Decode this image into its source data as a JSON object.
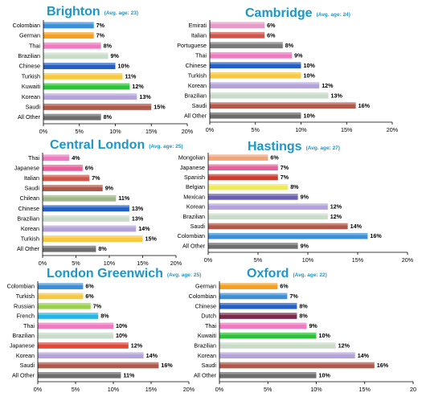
{
  "chart_data": [
    {
      "type": "bar",
      "title": "Brighton",
      "subtitle": "(Avg. age: 23)",
      "unit": "%",
      "xlim": [
        0,
        20
      ],
      "ticks": [
        "0%",
        "5%",
        "10%",
        "15%",
        "20%"
      ],
      "grid": false,
      "categories": [
        "Colombian",
        "German",
        "Thai",
        "Brazilian",
        "Chinese",
        "Turkish",
        "Kuwaiti",
        "Korean",
        "Saudi",
        "All Other"
      ],
      "values": [
        7,
        7,
        8,
        9,
        10,
        11,
        12,
        13,
        15,
        8
      ],
      "value_labels": [
        "7%",
        "7%",
        "8%",
        "9%",
        "10%",
        "11%",
        "12%",
        "13%",
        "15%",
        "8%"
      ],
      "colors": [
        "#3b8fd6",
        "#f6a01e",
        "#f07ac0",
        "#c9dcc9",
        "#2460c4",
        "#f7c840",
        "#2ec23a",
        "#b3a2dc",
        "#b0584a",
        "#6d6d6d"
      ]
    },
    {
      "type": "bar",
      "title": "Cambridge",
      "subtitle": "(Avg. age: 24)",
      "unit": "%",
      "xlim": [
        0,
        20
      ],
      "ticks": [
        "0%",
        "5%",
        "10%",
        "15%",
        "20%"
      ],
      "grid": false,
      "categories": [
        "Emirati",
        "Italian",
        "Portuguese",
        "Thai",
        "Chinese",
        "Turkish",
        "Korean",
        "Brazilian",
        "Saudi",
        "All Other"
      ],
      "values": [
        6,
        6,
        8,
        9,
        10,
        10,
        12,
        13,
        16,
        10
      ],
      "value_labels": [
        "6%",
        "6%",
        "8%",
        "9%",
        "10%",
        "10%",
        "12%",
        "13%",
        "16%",
        "10%"
      ],
      "colors": [
        "#e79ac8",
        "#d0564a",
        "#7a7a7a",
        "#f07ac0",
        "#2460c4",
        "#f7c840",
        "#b3a2dc",
        "#c9dcc9",
        "#b0584a",
        "#6d6d6d"
      ]
    },
    {
      "type": "bar",
      "title": "Central London",
      "subtitle": "(Avg. age: 25)",
      "unit": "%",
      "xlim": [
        0,
        20
      ],
      "ticks": [
        "0%",
        "5%",
        "10%",
        "15%",
        "20%"
      ],
      "grid": false,
      "categories": [
        "Thai",
        "Japanese",
        "Italian",
        "Saudi",
        "Chilean",
        "Chinese",
        "Brazilian",
        "Korean",
        "Turkish",
        "All Other"
      ],
      "values": [
        4,
        6,
        7,
        9,
        11,
        13,
        13,
        14,
        15,
        8
      ],
      "value_labels": [
        "4%",
        "6%",
        "7%",
        "9%",
        "11%",
        "13%",
        "13%",
        "14%",
        "15%",
        "8%"
      ],
      "colors": [
        "#f07ac0",
        "#e8609a",
        "#d0564a",
        "#b0584a",
        "#9fb888",
        "#2460c4",
        "#c9dcc9",
        "#b3a2dc",
        "#f7c840",
        "#6d6d6d"
      ]
    },
    {
      "type": "bar",
      "title": "Hastings",
      "subtitle": "(Avg. age: 27)",
      "unit": "%",
      "xlim": [
        0,
        20
      ],
      "ticks": [
        "0%",
        "5%",
        "10%",
        "15%",
        "20%"
      ],
      "grid": false,
      "categories": [
        "Mongolian",
        "Japanese",
        "Spanish",
        "Belgian",
        "Mexican",
        "Korean",
        "Brazilian",
        "Saudi",
        "Colombian",
        "All Other"
      ],
      "values": [
        6,
        7,
        7,
        8,
        9,
        12,
        12,
        14,
        16,
        9
      ],
      "value_labels": [
        "6%",
        "7%",
        "7%",
        "8%",
        "9%",
        "12%",
        "12%",
        "14%",
        "16%",
        "9%"
      ],
      "colors": [
        "#f3a57a",
        "#e8609a",
        "#d03a2a",
        "#eeea58",
        "#6a5fb0",
        "#b3a2dc",
        "#c9dcc9",
        "#b0584a",
        "#3b8fd6",
        "#6d6d6d"
      ]
    },
    {
      "type": "bar",
      "title": "London Greenwich",
      "subtitle": "(Avg. age: 25)",
      "unit": "%",
      "xlim": [
        0,
        20
      ],
      "ticks": [
        "0%",
        "5%",
        "10%",
        "15%",
        "20%"
      ],
      "grid": false,
      "categories": [
        "Colombian",
        "Turkish",
        "Russian",
        "French",
        "Thai",
        "Brazilian",
        "Japanese",
        "Korean",
        "Saudi",
        "All Other"
      ],
      "values": [
        6,
        6,
        7,
        8,
        10,
        10,
        12,
        14,
        16,
        11
      ],
      "value_labels": [
        "6%",
        "6%",
        "7%",
        "8%",
        "10%",
        "10%",
        "12%",
        "14%",
        "16%",
        "11%"
      ],
      "colors": [
        "#3b8fd6",
        "#f7c840",
        "#9ad14a",
        "#27b6e4",
        "#f07ac0",
        "#c9dcc9",
        "#e0483a",
        "#b3a2dc",
        "#b0584a",
        "#6d6d6d"
      ]
    },
    {
      "type": "bar",
      "title": "Oxford",
      "subtitle": "(Avg. age: 22)",
      "unit": "%",
      "xlim": [
        0,
        20
      ],
      "ticks": [
        "0%",
        "5%",
        "10%",
        "15%",
        "20"
      ],
      "grid": false,
      "categories": [
        "German",
        "Colombian",
        "Chinese",
        "Dutch",
        "Thai",
        "Kuwaiti",
        "Brazilian",
        "Korean",
        "Saudi",
        "All Other"
      ],
      "values": [
        6,
        7,
        8,
        8,
        9,
        10,
        12,
        14,
        16,
        10
      ],
      "value_labels": [
        "6%",
        "7%",
        "8%",
        "8%",
        "9%",
        "10%",
        "12%",
        "14%",
        "16%",
        "10%"
      ],
      "colors": [
        "#f6a01e",
        "#3b8fd6",
        "#2460c4",
        "#7a2a4a",
        "#f07ac0",
        "#2ec23a",
        "#c9dcc9",
        "#b3a2dc",
        "#b0584a",
        "#6d6d6d"
      ]
    }
  ]
}
